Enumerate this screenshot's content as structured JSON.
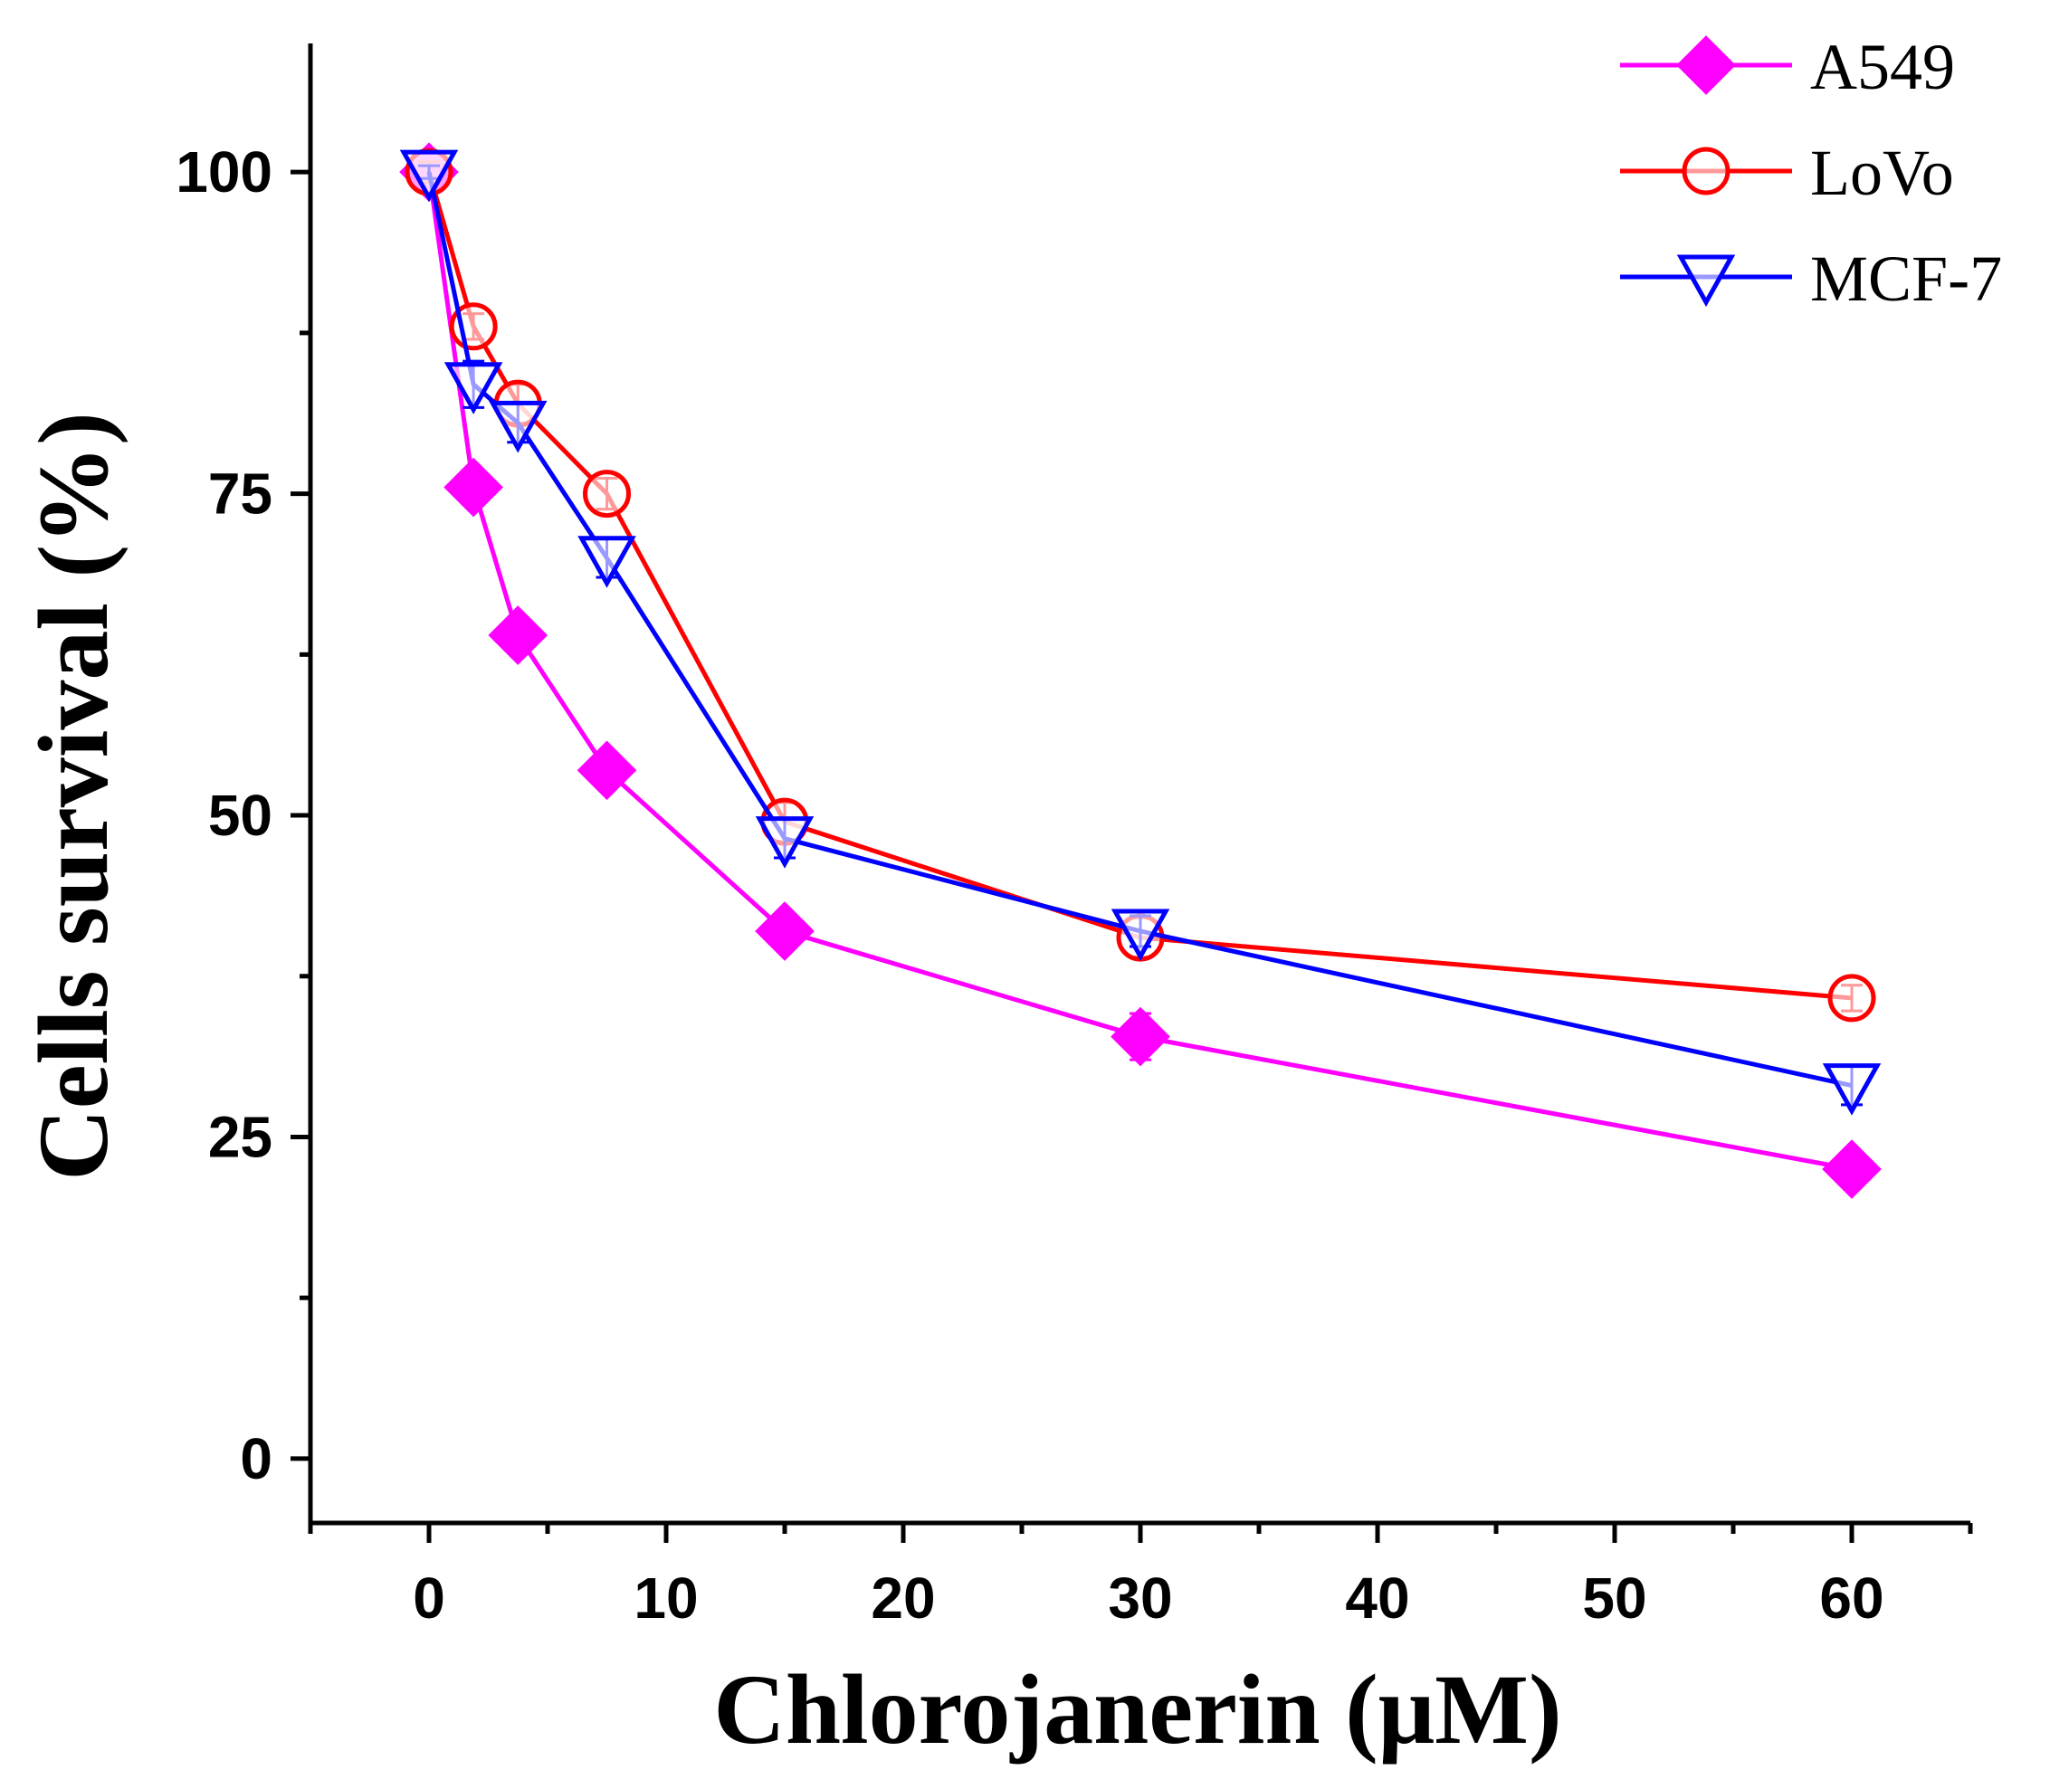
{
  "chart_data": {
    "type": "line",
    "title": "",
    "xlabel": "Chlorojanerin (μM)",
    "ylabel": "Cells survival (%)",
    "xlim": [
      -5,
      65
    ],
    "ylim": [
      -5,
      110
    ],
    "x_ticks": [
      0,
      10,
      20,
      30,
      40,
      50,
      60
    ],
    "x_tick_labels": [
      "0",
      "10",
      "20",
      "30",
      "40",
      "50",
      "60"
    ],
    "y_ticks": [
      0,
      25,
      50,
      75,
      100
    ],
    "y_tick_labels": [
      "0",
      "25",
      "50",
      "75",
      "100"
    ],
    "x": [
      0,
      1.875,
      3.75,
      7.5,
      15,
      30,
      60
    ],
    "legend_position": "top-right",
    "grid": false,
    "series": [
      {
        "name": "A549",
        "color": "#ff00ff",
        "marker": "diamond-filled",
        "values": [
          100,
          75.5,
          64,
          53.5,
          41,
          32.8,
          22.5
        ],
        "errors": [
          0.5,
          1.0,
          1.0,
          0.8,
          0.8,
          1.8,
          0.8
        ]
      },
      {
        "name": "LoVo",
        "color": "#ff0000",
        "marker": "circle-open",
        "values": [
          100,
          88,
          82,
          75,
          49.5,
          40.5,
          35.8
        ],
        "errors": [
          0.8,
          1.0,
          1.5,
          1.2,
          1.5,
          1.5,
          1.0
        ]
      },
      {
        "name": "MCF-7",
        "color": "#0000ff",
        "marker": "triangle-down-open",
        "values": [
          100,
          83.5,
          80.5,
          70,
          48.2,
          41,
          29
        ],
        "errors": [
          0.5,
          1.8,
          1.5,
          1.5,
          1.5,
          1.2,
          1.5
        ]
      }
    ]
  }
}
